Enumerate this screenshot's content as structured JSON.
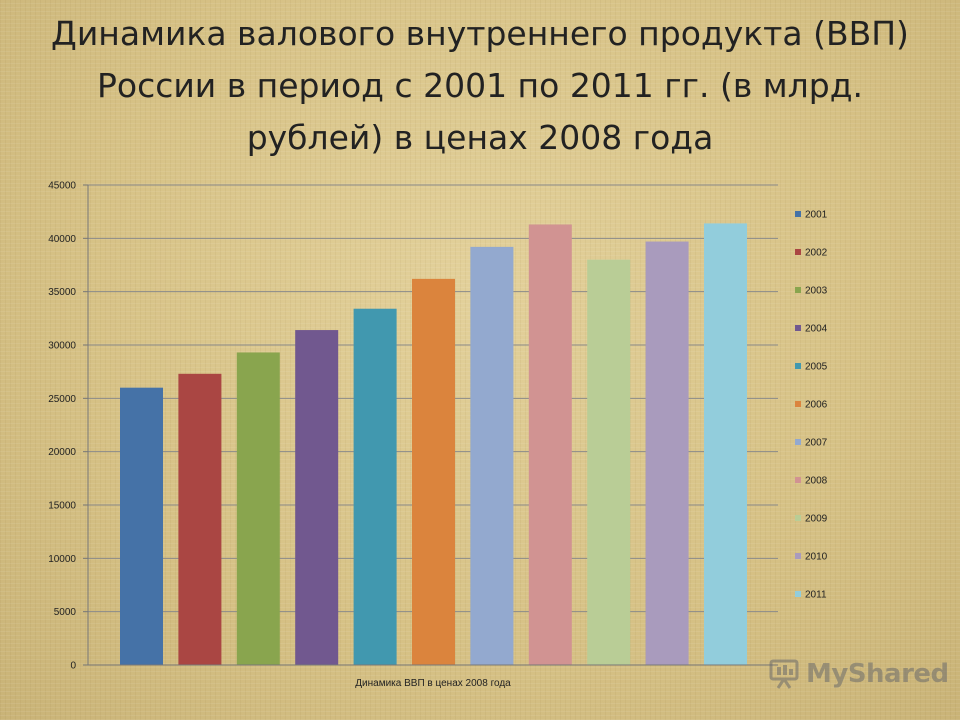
{
  "title": "Динамика валового внутреннего продукта (ВВП) России в период с 2001 по 2011 гг. (в млрд. рублей) в ценах 2008 года",
  "chart_data": {
    "type": "bar",
    "xlabel": "Динамика ВВП в ценах 2008 года",
    "ylabel": "",
    "ylim": [
      0,
      45000
    ],
    "yticks": [
      0,
      5000,
      10000,
      15000,
      20000,
      25000,
      30000,
      35000,
      40000,
      45000
    ],
    "grid": true,
    "legend_position": "right",
    "series": [
      {
        "name": "2001",
        "value": 26000,
        "color": "#4572a7"
      },
      {
        "name": "2002",
        "value": 27300,
        "color": "#aa4643"
      },
      {
        "name": "2003",
        "value": 29300,
        "color": "#89a54e"
      },
      {
        "name": "2004",
        "value": 31400,
        "color": "#71588f"
      },
      {
        "name": "2005",
        "value": 33400,
        "color": "#4198af"
      },
      {
        "name": "2006",
        "value": 36200,
        "color": "#db843d"
      },
      {
        "name": "2007",
        "value": 39200,
        "color": "#93a9cf"
      },
      {
        "name": "2008",
        "value": 41300,
        "color": "#d19392"
      },
      {
        "name": "2009",
        "value": 38000,
        "color": "#b9cd96"
      },
      {
        "name": "2010",
        "value": 39700,
        "color": "#a99bbd"
      },
      {
        "name": "2011",
        "value": 41400,
        "color": "#92cddc"
      }
    ]
  },
  "watermark": {
    "text": "MyShared",
    "icon": "presentation-screen-icon"
  }
}
